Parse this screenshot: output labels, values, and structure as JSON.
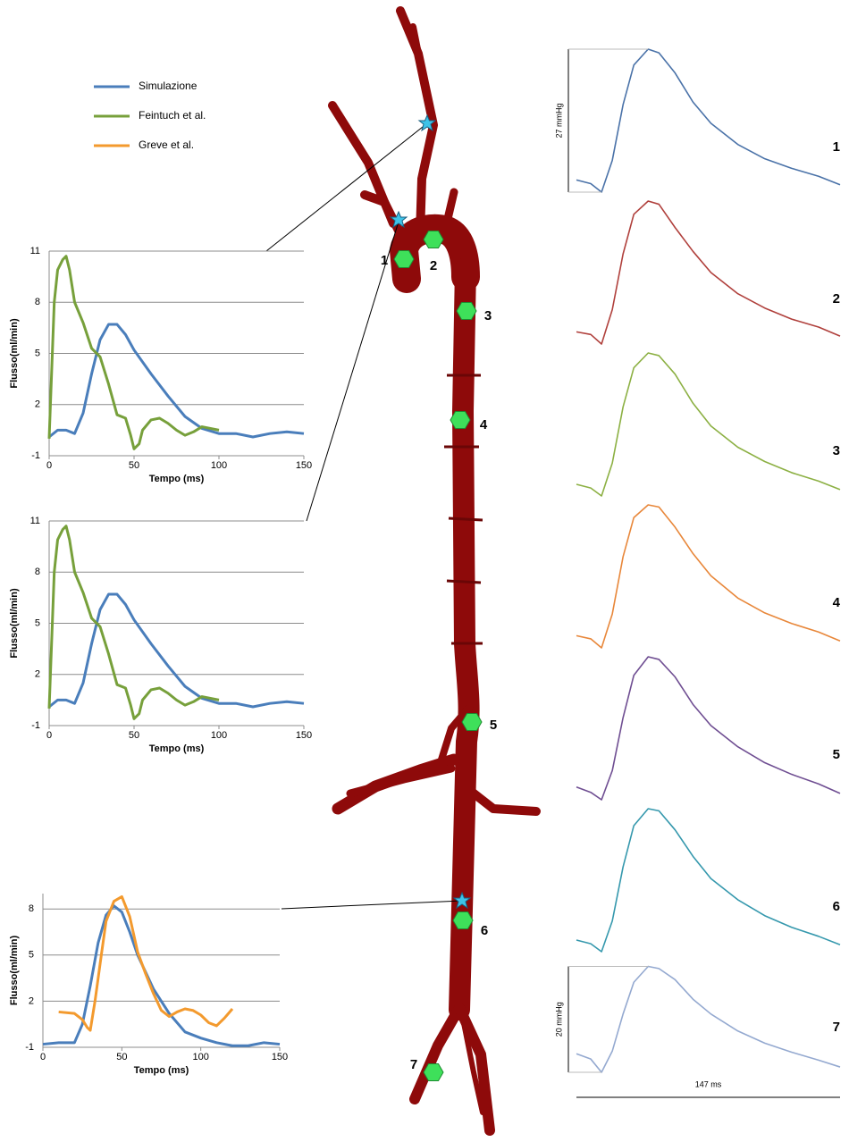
{
  "chart_data": [
    {
      "type": "line",
      "x_label": "Tempo (ms)",
      "y_label": "Flusso(ml/min)",
      "xlim": [
        0,
        150
      ],
      "xticks": [
        0,
        50,
        100,
        150
      ],
      "ylim": [
        -1,
        11
      ],
      "yticks": [
        -1,
        2,
        5,
        8,
        11
      ],
      "grid": true,
      "series": [
        {
          "name": "Simulazione",
          "color": "#4a7ebb",
          "x": [
            0,
            5,
            10,
            15,
            20,
            25,
            30,
            35,
            40,
            45,
            50,
            60,
            70,
            80,
            90,
            100,
            110,
            120,
            130,
            140,
            150
          ],
          "values": [
            0.1,
            0.5,
            0.5,
            0.3,
            1.5,
            3.8,
            5.8,
            6.7,
            6.7,
            6.1,
            5.2,
            3.8,
            2.5,
            1.3,
            0.6,
            0.3,
            0.3,
            0.1,
            0.3,
            0.4,
            0.3
          ]
        },
        {
          "name": "Feintuch et al.",
          "color": "#77a03b",
          "x": [
            0,
            3,
            5,
            8,
            10,
            12,
            15,
            20,
            25,
            30,
            35,
            40,
            45,
            48,
            50,
            53,
            55,
            60,
            65,
            70,
            75,
            80,
            85,
            90,
            95,
            100
          ],
          "values": [
            0,
            8,
            9.9,
            10.5,
            10.7,
            9.9,
            8,
            6.8,
            5.3,
            4.8,
            3.2,
            1.4,
            1.2,
            0.2,
            -0.6,
            -0.3,
            0.5,
            1.1,
            1.2,
            0.9,
            0.5,
            0.2,
            0.4,
            0.7,
            0.6,
            0.5
          ]
        }
      ]
    },
    {
      "type": "line",
      "x_label": "Tempo (ms)",
      "y_label": "Flusso(ml/min)",
      "xlim": [
        0,
        150
      ],
      "xticks": [
        0,
        50,
        100,
        150
      ],
      "ylim": [
        -1,
        11
      ],
      "yticks": [
        -1,
        2,
        5,
        8,
        11
      ],
      "grid": true,
      "series": [
        {
          "name": "Simulazione",
          "color": "#4a7ebb",
          "x": [
            0,
            5,
            10,
            15,
            20,
            25,
            30,
            35,
            40,
            45,
            50,
            60,
            70,
            80,
            90,
            100,
            110,
            120,
            130,
            140,
            150
          ],
          "values": [
            0.1,
            0.5,
            0.5,
            0.3,
            1.5,
            3.8,
            5.8,
            6.7,
            6.7,
            6.1,
            5.2,
            3.8,
            2.5,
            1.3,
            0.6,
            0.3,
            0.3,
            0.1,
            0.3,
            0.4,
            0.3
          ]
        },
        {
          "name": "Feintuch et al.",
          "color": "#77a03b",
          "x": [
            0,
            3,
            5,
            8,
            10,
            12,
            15,
            20,
            25,
            30,
            35,
            40,
            45,
            48,
            50,
            53,
            55,
            60,
            65,
            70,
            75,
            80,
            85,
            90,
            95,
            100
          ],
          "values": [
            0,
            8,
            9.9,
            10.5,
            10.7,
            9.9,
            8,
            6.8,
            5.3,
            4.8,
            3.2,
            1.4,
            1.2,
            0.2,
            -0.6,
            -0.3,
            0.5,
            1.1,
            1.2,
            0.9,
            0.5,
            0.2,
            0.4,
            0.7,
            0.6,
            0.5
          ]
        }
      ]
    },
    {
      "type": "line",
      "x_label": "Tempo (ms)",
      "y_label": "Flusso(ml/min)",
      "xlim": [
        0,
        150
      ],
      "xticks": [
        0,
        50,
        100,
        150
      ],
      "ylim": [
        -1,
        9
      ],
      "yticks": [
        -1,
        2,
        5,
        8
      ],
      "grid": true,
      "series": [
        {
          "name": "Simulazione",
          "color": "#4a7ebb",
          "x": [
            0,
            10,
            20,
            25,
            30,
            35,
            40,
            45,
            50,
            55,
            60,
            70,
            80,
            90,
            100,
            110,
            120,
            130,
            140,
            150
          ],
          "values": [
            -0.8,
            -0.7,
            -0.7,
            0.5,
            3,
            5.8,
            7.6,
            8.2,
            7.8,
            6.5,
            5,
            2.8,
            1.2,
            0,
            -0.4,
            -0.7,
            -0.9,
            -0.9,
            -0.7,
            -0.8
          ]
        },
        {
          "name": "Greve et al.",
          "color": "#f39a2e",
          "x": [
            10,
            20,
            25,
            28,
            30,
            33,
            37,
            40,
            45,
            50,
            55,
            60,
            65,
            70,
            75,
            80,
            85,
            90,
            95,
            100,
            105,
            110,
            115,
            120
          ],
          "values": [
            1.3,
            1.2,
            0.8,
            0.3,
            0.1,
            2,
            5,
            7.2,
            8.5,
            8.8,
            7.5,
            5.2,
            3.8,
            2.5,
            1.4,
            1,
            1.3,
            1.5,
            1.4,
            1.1,
            0.6,
            0.4,
            0.9,
            1.5
          ]
        }
      ]
    },
    {
      "type": "waveform",
      "y_scale_label": "27 mmHg",
      "xlim": [
        0,
        147
      ],
      "ylim": [
        0,
        27
      ],
      "x": [
        0,
        8,
        14,
        20,
        26,
        32,
        40,
        46,
        55,
        65,
        75,
        90,
        105,
        120,
        135,
        147
      ],
      "series": [
        {
          "name": "1",
          "color": "#4a72a8",
          "values": [
            2.3,
            1.6,
            0,
            6,
            16.5,
            24,
            27,
            26.3,
            22.5,
            17,
            13,
            9,
            6.3,
            4.5,
            3,
            1.4
          ]
        },
        {
          "name": "2",
          "color": "#b0403c",
          "values": [
            2.3,
            1.8,
            0,
            6.5,
            17,
            24.5,
            27,
            26.4,
            22,
            17.5,
            13.5,
            9.5,
            6.8,
            4.7,
            3.2,
            1.5
          ]
        },
        {
          "name": "3",
          "color": "#8cb043",
          "values": [
            2.2,
            1.5,
            0,
            6.2,
            16.8,
            24.2,
            27,
            26.5,
            23,
            17.5,
            13.2,
            9.2,
            6.5,
            4.4,
            2.8,
            1.2
          ]
        },
        {
          "name": "4",
          "color": "#e8873a",
          "values": [
            2.3,
            1.7,
            0,
            6.4,
            17.2,
            24.6,
            27,
            26.6,
            22.8,
            17.8,
            13.6,
            9.4,
            6.6,
            4.6,
            3,
            1.3
          ]
        },
        {
          "name": "5",
          "color": "#6f4e92",
          "values": [
            2.4,
            1.4,
            0,
            5.5,
            15.5,
            23.5,
            27,
            26.5,
            23.2,
            18,
            14,
            10,
            7,
            4.8,
            3,
            1.2
          ]
        },
        {
          "name": "6",
          "color": "#3598ad",
          "values": [
            2.2,
            1.5,
            0,
            5.8,
            16,
            23.8,
            27,
            26.6,
            23,
            18,
            13.8,
            9.8,
            6.8,
            4.6,
            2.9,
            1.3
          ]
        }
      ]
    },
    {
      "type": "waveform",
      "y_scale_label": "20 mmHg",
      "x_scale_label": "147 ms",
      "xlim": [
        0,
        147
      ],
      "ylim": [
        0,
        20
      ],
      "x": [
        0,
        8,
        14,
        20,
        26,
        32,
        40,
        46,
        55,
        65,
        75,
        90,
        105,
        120,
        135,
        147
      ],
      "series": [
        {
          "name": "7",
          "color": "#94a9d0",
          "values": [
            3.5,
            2.5,
            0,
            4,
            11,
            17,
            20,
            19.6,
            17.5,
            13.8,
            11,
            7.8,
            5.5,
            3.8,
            2.3,
            1.0
          ]
        }
      ]
    }
  ],
  "diagram": {
    "site_labels": [
      "1",
      "2",
      "3",
      "4",
      "5",
      "6",
      "7"
    ]
  }
}
